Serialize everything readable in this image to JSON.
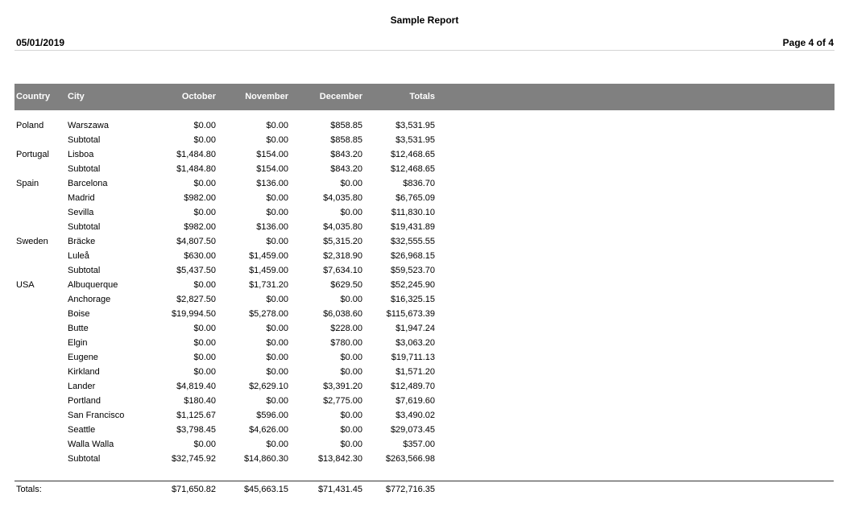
{
  "report": {
    "title": "Sample Report",
    "date": "05/01/2019",
    "page_label": "Page 4 of 4"
  },
  "colors": {
    "header_bar": "#808080",
    "header_text": "#ffffff",
    "rule_light": "#d4d4d4",
    "rule_dark": "#333333"
  },
  "table": {
    "columns": {
      "country": "Country",
      "city": "City",
      "october": "October",
      "november": "November",
      "december": "December",
      "totals": "Totals"
    },
    "rows": [
      {
        "country": "Poland",
        "city": "Warszawa",
        "october": "$0.00",
        "november": "$0.00",
        "december": "$858.85",
        "totals": "$3,531.95"
      },
      {
        "country": "",
        "city": "Subtotal",
        "october": "$0.00",
        "november": "$0.00",
        "december": "$858.85",
        "totals": "$3,531.95"
      },
      {
        "country": "Portugal",
        "city": "Lisboa",
        "october": "$1,484.80",
        "november": "$154.00",
        "december": "$843.20",
        "totals": "$12,468.65"
      },
      {
        "country": "",
        "city": "Subtotal",
        "october": "$1,484.80",
        "november": "$154.00",
        "december": "$843.20",
        "totals": "$12,468.65"
      },
      {
        "country": "Spain",
        "city": "Barcelona",
        "october": "$0.00",
        "november": "$136.00",
        "december": "$0.00",
        "totals": "$836.70"
      },
      {
        "country": "",
        "city": "Madrid",
        "october": "$982.00",
        "november": "$0.00",
        "december": "$4,035.80",
        "totals": "$6,765.09"
      },
      {
        "country": "",
        "city": "Sevilla",
        "october": "$0.00",
        "november": "$0.00",
        "december": "$0.00",
        "totals": "$11,830.10"
      },
      {
        "country": "",
        "city": "Subtotal",
        "october": "$982.00",
        "november": "$136.00",
        "december": "$4,035.80",
        "totals": "$19,431.89"
      },
      {
        "country": "Sweden",
        "city": "Bräcke",
        "october": "$4,807.50",
        "november": "$0.00",
        "december": "$5,315.20",
        "totals": "$32,555.55"
      },
      {
        "country": "",
        "city": "Luleå",
        "october": "$630.00",
        "november": "$1,459.00",
        "december": "$2,318.90",
        "totals": "$26,968.15"
      },
      {
        "country": "",
        "city": "Subtotal",
        "october": "$5,437.50",
        "november": "$1,459.00",
        "december": "$7,634.10",
        "totals": "$59,523.70"
      },
      {
        "country": "USA",
        "city": "Albuquerque",
        "october": "$0.00",
        "november": "$1,731.20",
        "december": "$629.50",
        "totals": "$52,245.90"
      },
      {
        "country": "",
        "city": "Anchorage",
        "october": "$2,827.50",
        "november": "$0.00",
        "december": "$0.00",
        "totals": "$16,325.15"
      },
      {
        "country": "",
        "city": "Boise",
        "october": "$19,994.50",
        "november": "$5,278.00",
        "december": "$6,038.60",
        "totals": "$115,673.39"
      },
      {
        "country": "",
        "city": "Butte",
        "october": "$0.00",
        "november": "$0.00",
        "december": "$228.00",
        "totals": "$1,947.24"
      },
      {
        "country": "",
        "city": "Elgin",
        "october": "$0.00",
        "november": "$0.00",
        "december": "$780.00",
        "totals": "$3,063.20"
      },
      {
        "country": "",
        "city": "Eugene",
        "october": "$0.00",
        "november": "$0.00",
        "december": "$0.00",
        "totals": "$19,711.13"
      },
      {
        "country": "",
        "city": "Kirkland",
        "october": "$0.00",
        "november": "$0.00",
        "december": "$0.00",
        "totals": "$1,571.20"
      },
      {
        "country": "",
        "city": "Lander",
        "october": "$4,819.40",
        "november": "$2,629.10",
        "december": "$3,391.20",
        "totals": "$12,489.70"
      },
      {
        "country": "",
        "city": "Portland",
        "october": "$180.40",
        "november": "$0.00",
        "december": "$2,775.00",
        "totals": "$7,619.60"
      },
      {
        "country": "",
        "city": "San Francisco",
        "october": "$1,125.67",
        "november": "$596.00",
        "december": "$0.00",
        "totals": "$3,490.02"
      },
      {
        "country": "",
        "city": "Seattle",
        "october": "$3,798.45",
        "november": "$4,626.00",
        "december": "$0.00",
        "totals": "$29,073.45"
      },
      {
        "country": "",
        "city": "Walla Walla",
        "october": "$0.00",
        "november": "$0.00",
        "december": "$0.00",
        "totals": "$357.00"
      },
      {
        "country": "",
        "city": "Subtotal",
        "october": "$32,745.92",
        "november": "$14,860.30",
        "december": "$13,842.30",
        "totals": "$263,566.98"
      }
    ],
    "grand_totals": {
      "label": "Totals:",
      "october": "$71,650.82",
      "november": "$45,663.15",
      "december": "$71,431.45",
      "totals": "$772,716.35"
    }
  }
}
